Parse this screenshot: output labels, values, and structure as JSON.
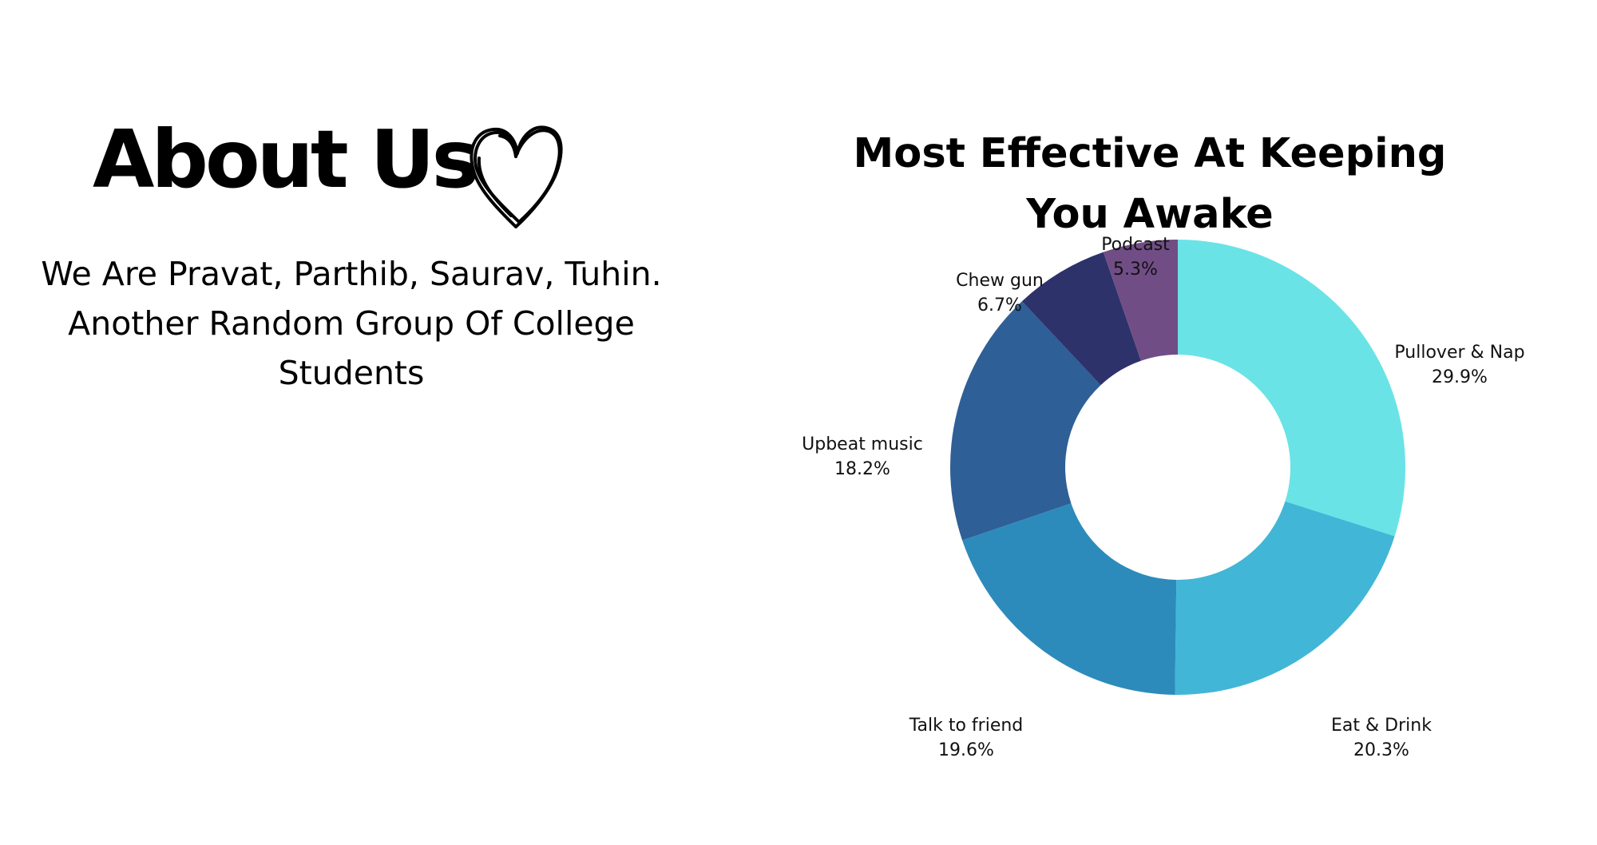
{
  "about": {
    "title": "About Us",
    "text": "We  Are  Pravat, Parthib, Saurav, Tuhin.\nAnother Random Group Of College\nStudents",
    "icon": "heart-icon"
  },
  "chart_data": {
    "type": "pie",
    "title": "Most Effective At Keeping You Awake",
    "donut": true,
    "start": "12 o'clock, clockwise",
    "slices": [
      {
        "label": "Pullover & Nap",
        "value": 29.9,
        "display": "29.9%",
        "color": "#6ae3e7"
      },
      {
        "label": "Eat & Drink",
        "value": 20.3,
        "display": "20.3%",
        "color": "#42b6d6"
      },
      {
        "label": "Talk to friend",
        "value": 19.6,
        "display": "19.6%",
        "color": "#2d8bbb"
      },
      {
        "label": "Upbeat music",
        "value": 18.2,
        "display": "18.2%",
        "color": "#2e5f97"
      },
      {
        "label": "Chew gun",
        "value": 6.7,
        "display": "6.7%",
        "color": "#2e326b"
      },
      {
        "label": "Podcast",
        "value": 5.3,
        "display": "5.3%",
        "color": "#714d86"
      }
    ]
  }
}
